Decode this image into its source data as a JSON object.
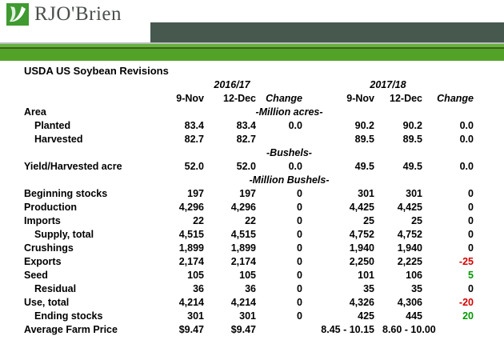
{
  "header": {
    "brand": "RJO'Brien"
  },
  "colors": {
    "banner_green": "#53a228",
    "banner_green_light": "#66b33c",
    "banner_green_dark_line": "#3a5f20",
    "banner_dark_band": "#47584e",
    "banner_divider": "#b9c0b9",
    "logo_green": "#3f9a2f",
    "brand_text": "#4a4f4a",
    "negative_change": "#d40000",
    "positive_change": "#009900"
  },
  "table": {
    "title": "USDA US Soybean Revisions",
    "groups": [
      "2016/17",
      "2017/18"
    ],
    "columns": [
      "9-Nov",
      "12-Dec",
      "Change",
      "9-Nov",
      "12-Dec",
      "Change"
    ],
    "rows": [
      {
        "label": "Area",
        "unit": "-Million acres-"
      },
      {
        "label": "Planted",
        "indent": true,
        "values": [
          "83.4",
          "83.4",
          "0.0",
          "90.2",
          "90.2",
          "0.0"
        ]
      },
      {
        "label": "Harvested",
        "indent": true,
        "values": [
          "82.7",
          "82.7",
          "",
          "89.5",
          "89.5",
          "0.0"
        ]
      },
      {
        "label": "",
        "unit": "-Bushels-"
      },
      {
        "label": "Yield/Harvested acre",
        "values": [
          "52.0",
          "52.0",
          "0.0",
          "49.5",
          "49.5",
          "0.0"
        ]
      },
      {
        "label": "",
        "unit": "-Million Bushels-"
      },
      {
        "label": "Beginning stocks",
        "values": [
          "197",
          "197",
          "0",
          "301",
          "301",
          "0"
        ]
      },
      {
        "label": "Production",
        "values": [
          "4,296",
          "4,296",
          "0",
          "4,425",
          "4,425",
          "0"
        ]
      },
      {
        "label": "Imports",
        "values": [
          "22",
          "22",
          "0",
          "25",
          "25",
          "0"
        ]
      },
      {
        "label": "Supply, total",
        "indent": true,
        "values": [
          "4,515",
          "4,515",
          "0",
          "4,752",
          "4,752",
          "0"
        ]
      },
      {
        "label": "Crushings",
        "values": [
          "1,899",
          "1,899",
          "0",
          "1,940",
          "1,940",
          "0"
        ]
      },
      {
        "label": "Exports",
        "values": [
          "2,174",
          "2,174",
          "0",
          "2,250",
          "2,225",
          "-25"
        ]
      },
      {
        "label": "Seed",
        "values": [
          "105",
          "105",
          "0",
          "101",
          "106",
          "5"
        ]
      },
      {
        "label": "Residual",
        "indent": true,
        "values": [
          "36",
          "36",
          "0",
          "35",
          "35",
          "0"
        ]
      },
      {
        "label": "Use, total",
        "values": [
          "4,214",
          "4,214",
          "0",
          "4,326",
          "4,306",
          "-20"
        ]
      },
      {
        "label": "Ending stocks",
        "indent": true,
        "values": [
          "301",
          "301",
          "0",
          "425",
          "445",
          "20"
        ]
      },
      {
        "label": "Average Farm Price",
        "span_last": true,
        "values": [
          "$9.47",
          "$9.47",
          "",
          "8.45 - 10.15",
          "8.60 - 10.00"
        ]
      }
    ]
  }
}
